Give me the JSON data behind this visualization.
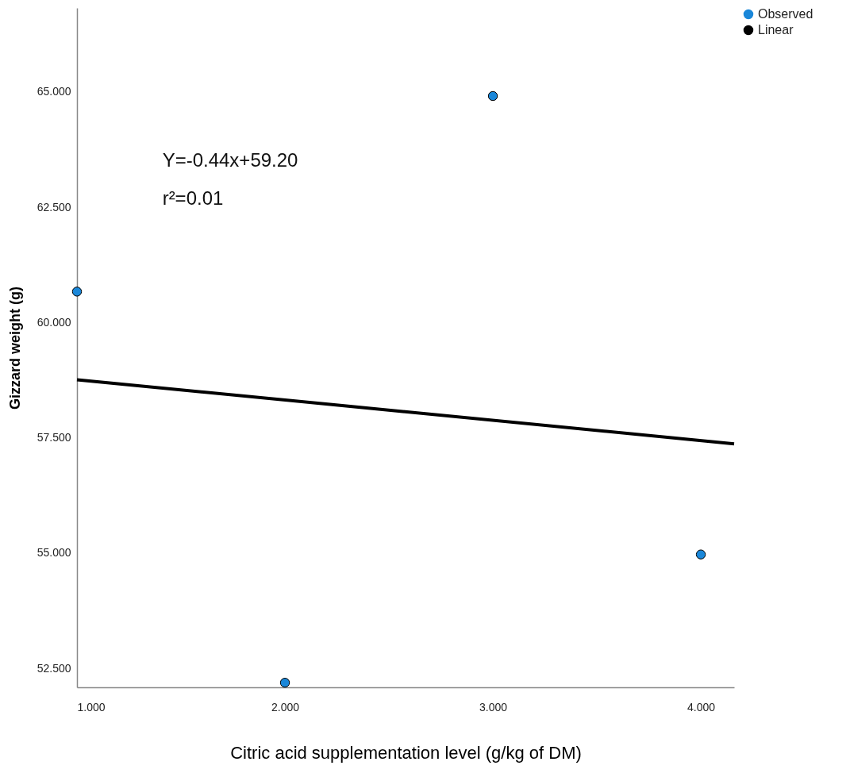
{
  "chart_data": {
    "type": "scatter",
    "xlabel": "Citric acid supplementation level (g/kg of DM)",
    "ylabel": "Gizzard weight (g)",
    "x": [
      1,
      2,
      3,
      4
    ],
    "series": [
      {
        "name": "Observed",
        "type": "scatter",
        "color": "#1a87d9",
        "marker": "circle",
        "values": [
          60.67,
          52.19,
          64.91,
          54.97
        ]
      },
      {
        "name": "Linear",
        "type": "line",
        "color": "#000000",
        "marker": "none",
        "line_style": "solid",
        "x": [
          1,
          4.16
        ],
        "values": [
          58.76,
          57.37
        ]
      }
    ],
    "xlim": [
      1,
      4.16
    ],
    "ylim": [
      52.09,
      66.82
    ],
    "xticks": [
      {
        "value": 1,
        "label": "1.000"
      },
      {
        "value": 2,
        "label": "2.000"
      },
      {
        "value": 3,
        "label": "3.000"
      },
      {
        "value": 4,
        "label": "4.000"
      }
    ],
    "yticks": [
      {
        "value": 52.5,
        "label": "52.500"
      },
      {
        "value": 55,
        "label": "55.000"
      },
      {
        "value": 57.5,
        "label": "57.500"
      },
      {
        "value": 60,
        "label": "60.000"
      },
      {
        "value": 62.5,
        "label": "62.500"
      },
      {
        "value": 65,
        "label": "65.000"
      }
    ],
    "annotations": [
      "Y=-0.44x+59.20",
      "r²=0.01"
    ],
    "legend": "top right",
    "grid": false
  }
}
